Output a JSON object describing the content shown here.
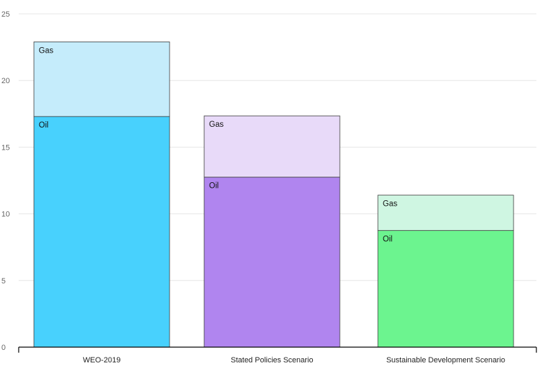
{
  "chart_data": {
    "type": "bar",
    "stacked": true,
    "categories": [
      "WEO-2019",
      "Stated Policies Scenario",
      "Sustainable Development Scenario"
    ],
    "series": [
      {
        "name": "Oil",
        "values": [
          17.3,
          12.75,
          8.75
        ],
        "colors": [
          "#48d1fd",
          "#b085ef",
          "#6cf48f"
        ]
      },
      {
        "name": "Gas",
        "values": [
          5.6,
          4.6,
          2.65
        ],
        "colors": [
          "#c5ecfb",
          "#e8daf9",
          "#cff6e2"
        ]
      }
    ],
    "yticks": [
      0,
      5,
      10,
      15,
      20,
      25
    ],
    "ylim": [
      0,
      25
    ],
    "grid": true,
    "title": "",
    "xlabel": "",
    "ylabel": ""
  }
}
